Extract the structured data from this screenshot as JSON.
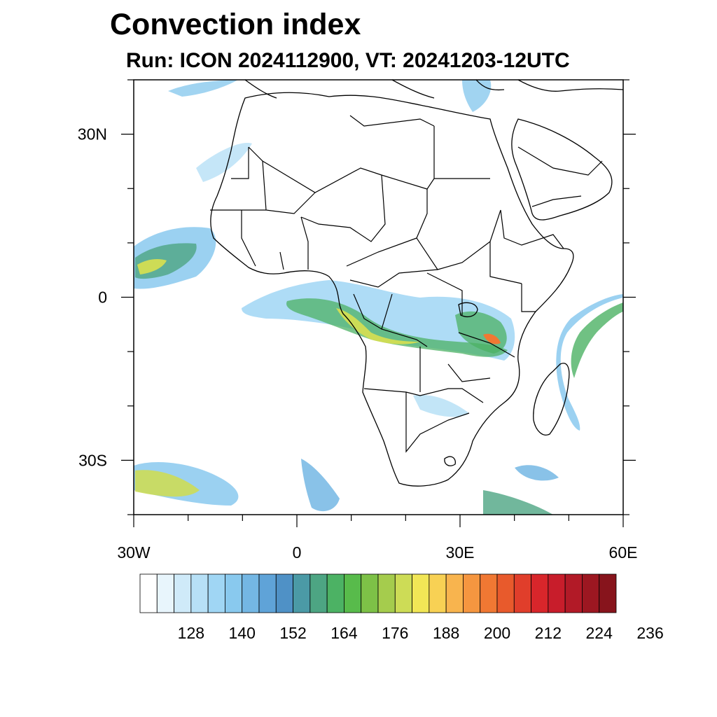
{
  "header": {
    "title": "Convection index",
    "subtitle": "Run: ICON 2024112900,  VT: 20241203-12UTC"
  },
  "map": {
    "lon_range": [
      -30,
      60
    ],
    "lat_range": [
      -40,
      40
    ],
    "lat_ticks": [
      {
        "value": 30,
        "label": "30N"
      },
      {
        "value": 0,
        "label": "0"
      },
      {
        "value": -30,
        "label": "30S"
      }
    ],
    "lon_ticks": [
      {
        "value": -30,
        "label": "30W"
      },
      {
        "value": 0,
        "label": "0"
      },
      {
        "value": 30,
        "label": "30E"
      },
      {
        "value": 60,
        "label": "60E"
      }
    ]
  },
  "colorbar": {
    "colors": [
      "#ffffff",
      "#e8f5fc",
      "#cfeaf9",
      "#b7e0f6",
      "#a0d6f4",
      "#89c9ee",
      "#74b7e4",
      "#5fa3d8",
      "#4f91c6",
      "#4b9aa6",
      "#4da583",
      "#4cb264",
      "#58bb4b",
      "#7dc147",
      "#a5cc4d",
      "#cddc56",
      "#f1e656",
      "#f8d154",
      "#f8b44e",
      "#f59640",
      "#f07833",
      "#e85a2c",
      "#e03e2b",
      "#d8262b",
      "#c81d2b",
      "#b21a27",
      "#9c1721",
      "#87141c"
    ],
    "labels": [
      "128",
      "140",
      "152",
      "164",
      "176",
      "188",
      "200",
      "212",
      "224",
      "236"
    ],
    "first_label_boundary": 3
  }
}
